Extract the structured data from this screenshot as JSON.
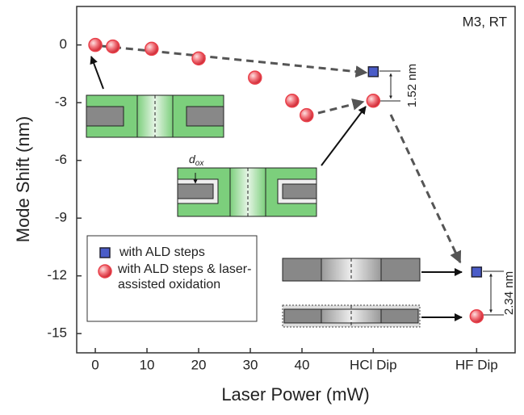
{
  "chart_data": {
    "type": "scatter",
    "annotations": {
      "corner": "M3, RT",
      "gap_hcl": "1.52 nm",
      "gap_hf": "2.34 nm",
      "dox_main": "d",
      "dox_sub": "ox"
    },
    "xlabel": "Laser Power (mW)",
    "ylabel": "Mode Shift (nm)",
    "xlim": [
      -3.6,
      81.25
    ],
    "ylim": [
      -16,
      2
    ],
    "xticks": [
      0,
      10,
      20,
      30,
      40,
      {
        "value": 53.8,
        "label": "HCl Dip"
      },
      {
        "value": 73.8,
        "label": "HF Dip"
      }
    ],
    "yticks": [
      0,
      -3,
      -6,
      -9,
      -12,
      -15
    ],
    "grid": false,
    "legend": "lower left",
    "series": [
      {
        "name": "with ALD steps",
        "color": "#4a5cc8",
        "marker": "square",
        "x": [
          53.8,
          73.8
        ],
        "values": [
          -1.39,
          -11.8
        ]
      },
      {
        "name": "with ALD steps & laser-assisted oxidation",
        "color": "#e8404a",
        "marker": "circle",
        "x": [
          0,
          3.4,
          10.9,
          20,
          30.9,
          38.1,
          40.9,
          53.8,
          73.8
        ],
        "values": [
          0,
          -0.08,
          -0.2,
          -0.7,
          -1.7,
          -2.9,
          -3.65,
          -2.9,
          -14.1
        ]
      }
    ]
  }
}
